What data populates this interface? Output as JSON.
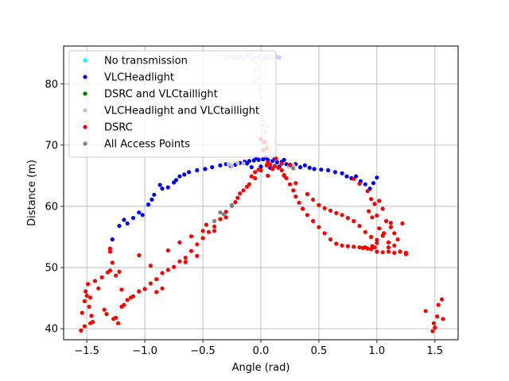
{
  "chart_data": {
    "type": "scatter",
    "xlabel": "Angle (rad)",
    "ylabel": "Distance (m)",
    "xlim": [
      -1.7,
      1.7
    ],
    "ylim": [
      38.2,
      86.2
    ],
    "x_ticks": [
      -1.5,
      -1.0,
      -0.5,
      0.0,
      0.5,
      1.0,
      1.5
    ],
    "x_tick_labels": [
      "−1.5",
      "−1.0",
      "−0.5",
      "0.0",
      "0.5",
      "1.0",
      "1.5"
    ],
    "y_ticks": [
      40,
      50,
      60,
      70,
      80
    ],
    "y_tick_labels": [
      "40",
      "50",
      "60",
      "70",
      "80"
    ],
    "grid": true,
    "legend_position": "upper-left",
    "series": [
      {
        "name": "No transmission",
        "color": "#00ffff",
        "points": []
      },
      {
        "name": "VLCHeadlight",
        "color": "#0000ff",
        "points": [
          [
            -1.28,
            54.6
          ],
          [
            -1.22,
            56.8
          ],
          [
            -1.18,
            57.8
          ],
          [
            -1.15,
            57.2
          ],
          [
            -1.1,
            58.1
          ],
          [
            -1.05,
            59.0
          ],
          [
            -1.02,
            58.6
          ],
          [
            -0.97,
            60.3
          ],
          [
            -0.94,
            61.1
          ],
          [
            -0.92,
            61.9
          ],
          [
            -0.87,
            63.5
          ],
          [
            -0.85,
            62.9
          ],
          [
            -0.8,
            63.1
          ],
          [
            -0.75,
            63.9
          ],
          [
            -0.73,
            64.3
          ],
          [
            -0.7,
            64.9
          ],
          [
            -0.66,
            65.2
          ],
          [
            -0.62,
            65.6
          ],
          [
            -0.55,
            65.9
          ],
          [
            -0.48,
            66.1
          ],
          [
            -0.42,
            66.4
          ],
          [
            -0.35,
            66.7
          ],
          [
            -0.3,
            66.9
          ],
          [
            -0.26,
            66.6
          ],
          [
            -0.22,
            66.8
          ],
          [
            -0.18,
            67.1
          ],
          [
            -0.14,
            67.3
          ],
          [
            -0.1,
            67.4
          ],
          [
            -0.06,
            67.5
          ],
          [
            -0.02,
            67.6
          ],
          [
            0.02,
            67.7
          ],
          [
            0.06,
            67.6
          ],
          [
            0.1,
            67.4
          ],
          [
            0.14,
            67.2
          ],
          [
            0.18,
            67.3
          ],
          [
            0.22,
            66.9
          ],
          [
            0.26,
            66.7
          ],
          [
            0.3,
            66.9
          ],
          [
            0.34,
            66.4
          ],
          [
            0.38,
            66.7
          ],
          [
            0.42,
            66.3
          ],
          [
            0.46,
            66.1
          ],
          [
            0.52,
            66.0
          ],
          [
            0.58,
            65.9
          ],
          [
            0.64,
            65.6
          ],
          [
            0.7,
            65.4
          ],
          [
            0.74,
            64.9
          ],
          [
            0.78,
            64.6
          ],
          [
            0.82,
            64.9
          ],
          [
            0.86,
            64.1
          ],
          [
            0.9,
            63.6
          ],
          [
            0.94,
            62.9
          ],
          [
            0.97,
            63.8
          ],
          [
            1.0,
            64.7
          ],
          [
            -0.08,
            66.4
          ],
          [
            0.0,
            66.5
          ],
          [
            0.08,
            66.3
          ],
          [
            -0.04,
            67.9
          ],
          [
            0.04,
            68.0
          ],
          [
            0.12,
            67.8
          ],
          [
            0.2,
            67.6
          ],
          [
            -0.12,
            67.0
          ],
          [
            0.16,
            66.5
          ]
        ]
      },
      {
        "name": "DSRC and VLCtaillight",
        "color": "#008000",
        "points": []
      },
      {
        "name": "VLCHeadlight and VLCtaillight",
        "color": "#c0c0c0",
        "points": [
          [
            -0.28,
            66.9
          ],
          [
            -0.25,
            66.6
          ],
          [
            -0.2,
            67.1
          ],
          [
            0.24,
            66.5
          ],
          [
            0.28,
            66.7
          ],
          [
            -0.15,
            67.0
          ],
          [
            0.02,
            73.3
          ],
          [
            0.04,
            72.2
          ],
          [
            0.01,
            74.7
          ]
        ]
      },
      {
        "name": "DSRC",
        "color": "#ff0000",
        "points": [
          [
            -1.55,
            39.7
          ],
          [
            -1.54,
            42.6
          ],
          [
            -1.52,
            44.5
          ],
          [
            -1.51,
            46.1
          ],
          [
            -1.5,
            45.4
          ],
          [
            -1.49,
            47.3
          ],
          [
            -1.48,
            43.6
          ],
          [
            -1.47,
            40.9
          ],
          [
            -1.46,
            42.1
          ],
          [
            -1.45,
            41.1
          ],
          [
            -1.43,
            47.8
          ],
          [
            -1.4,
            46.6
          ],
          [
            -1.37,
            48.4
          ],
          [
            -1.35,
            43.1
          ],
          [
            -1.33,
            42.4
          ],
          [
            -1.32,
            49.2
          ],
          [
            -1.3,
            53.1
          ],
          [
            -1.3,
            52.6
          ],
          [
            -1.28,
            50.8
          ],
          [
            -1.27,
            41.6
          ],
          [
            -1.25,
            41.8
          ],
          [
            -1.23,
            40.9
          ],
          [
            -1.2,
            43.6
          ],
          [
            -1.18,
            43.9
          ],
          [
            -1.15,
            44.7
          ],
          [
            -1.12,
            45.1
          ],
          [
            -1.1,
            45.3
          ],
          [
            -1.05,
            46.1
          ],
          [
            -1.0,
            46.5
          ],
          [
            -0.95,
            47.4
          ],
          [
            -0.9,
            48.1
          ],
          [
            -0.85,
            49.1
          ],
          [
            -0.8,
            49.6
          ],
          [
            -0.75,
            50.1
          ],
          [
            -0.7,
            51.0
          ],
          [
            -0.65,
            51.6
          ],
          [
            -0.6,
            52.7
          ],
          [
            -0.55,
            53.8
          ],
          [
            -0.5,
            54.8
          ],
          [
            -0.45,
            55.8
          ],
          [
            -0.4,
            56.7
          ],
          [
            -0.35,
            57.9
          ],
          [
            -0.3,
            59.1
          ],
          [
            -0.25,
            60.1
          ],
          [
            -0.2,
            61.4
          ],
          [
            -0.15,
            62.6
          ],
          [
            -0.1,
            63.6
          ],
          [
            -0.05,
            64.6
          ],
          [
            0.0,
            65.9
          ],
          [
            0.05,
            66.7
          ],
          [
            0.1,
            66.1
          ],
          [
            -1.3,
            49.5
          ],
          [
            -1.25,
            48.7
          ],
          [
            -1.2,
            46.4
          ],
          [
            -0.9,
            46.0
          ],
          [
            -0.85,
            46.6
          ],
          [
            -0.65,
            50.9
          ],
          [
            -0.55,
            51.9
          ],
          [
            -0.47,
            57.0
          ],
          [
            -0.4,
            56.0
          ],
          [
            -0.3,
            58.2
          ],
          [
            -0.22,
            60.7
          ],
          [
            -0.18,
            62.1
          ],
          [
            -0.12,
            63.2
          ],
          [
            -0.08,
            64.9
          ],
          [
            -1.52,
            40.4
          ],
          [
            -1.47,
            45.1
          ],
          [
            -1.22,
            49.3
          ],
          [
            -1.05,
            52.0
          ],
          [
            -0.95,
            50.3
          ],
          [
            -0.8,
            52.8
          ],
          [
            -0.7,
            54.1
          ],
          [
            -0.6,
            55.1
          ],
          [
            -0.5,
            56.0
          ],
          [
            -0.02,
            66.0
          ],
          [
            0.02,
            69.2
          ],
          [
            0.06,
            67.2
          ],
          [
            0.12,
            66.6
          ],
          [
            0.15,
            66.3
          ],
          [
            0.18,
            65.9
          ],
          [
            0.2,
            65.1
          ],
          [
            0.22,
            64.6
          ],
          [
            0.25,
            63.6
          ],
          [
            0.28,
            62.6
          ],
          [
            0.3,
            61.6
          ],
          [
            0.33,
            60.6
          ],
          [
            0.36,
            59.6
          ],
          [
            0.4,
            58.6
          ],
          [
            0.45,
            57.6
          ],
          [
            0.5,
            56.6
          ],
          [
            0.55,
            55.6
          ],
          [
            0.6,
            54.6
          ],
          [
            0.65,
            53.9
          ],
          [
            0.7,
            53.6
          ],
          [
            0.75,
            53.5
          ],
          [
            0.8,
            53.4
          ],
          [
            0.85,
            53.3
          ],
          [
            0.88,
            53.2
          ],
          [
            0.92,
            53.1
          ],
          [
            0.95,
            53.0
          ],
          [
            0.98,
            53.3
          ],
          [
            1.0,
            52.6
          ],
          [
            1.05,
            52.5
          ],
          [
            1.1,
            52.6
          ],
          [
            1.15,
            52.4
          ],
          [
            1.2,
            52.6
          ],
          [
            1.25,
            52.2
          ],
          [
            0.1,
            66.2
          ],
          [
            0.2,
            65.0
          ],
          [
            0.3,
            63.8
          ],
          [
            0.4,
            62.0
          ],
          [
            0.45,
            61.1
          ],
          [
            0.5,
            60.2
          ],
          [
            0.55,
            59.7
          ],
          [
            0.6,
            59.3
          ],
          [
            0.65,
            58.9
          ],
          [
            0.7,
            58.6
          ],
          [
            0.75,
            58.1
          ],
          [
            0.8,
            57.6
          ],
          [
            0.85,
            56.8
          ],
          [
            0.9,
            55.8
          ],
          [
            0.95,
            55.0
          ],
          [
            1.0,
            54.5
          ],
          [
            1.05,
            55.2
          ],
          [
            1.1,
            54.1
          ],
          [
            1.15,
            53.6
          ],
          [
            1.2,
            52.6
          ],
          [
            0.8,
            64.5
          ],
          [
            0.85,
            63.7
          ],
          [
            0.92,
            62.5
          ],
          [
            0.95,
            61.2
          ],
          [
            0.98,
            60.4
          ],
          [
            1.02,
            60.9
          ],
          [
            1.05,
            59.6
          ],
          [
            1.0,
            58.5
          ],
          [
            1.08,
            57.6
          ],
          [
            1.12,
            56.6
          ],
          [
            1.15,
            55.6
          ],
          [
            1.18,
            54.6
          ],
          [
            1.02,
            56.4
          ],
          [
            0.93,
            59.2
          ],
          [
            0.96,
            58.2
          ],
          [
            1.0,
            54.0
          ],
          [
            1.06,
            55.6
          ],
          [
            1.12,
            57.3
          ],
          [
            1.1,
            53.3
          ],
          [
            1.22,
            57.2
          ],
          [
            1.25,
            52.4
          ],
          [
            0.96,
            53.5
          ],
          [
            0.9,
            53.3
          ],
          [
            1.42,
            42.9
          ],
          [
            1.48,
            39.6
          ],
          [
            1.5,
            40.2
          ],
          [
            1.52,
            42.0
          ],
          [
            1.53,
            43.9
          ],
          [
            1.56,
            44.8
          ],
          [
            1.57,
            41.6
          ],
          [
            1.49,
            40.9
          ],
          [
            0.0,
            71.0
          ],
          [
            0.03,
            70.5
          ],
          [
            0.05,
            69.5
          ],
          [
            -0.05,
            65.6
          ],
          [
            0.13,
            67.8
          ],
          [
            0.25,
            66.8
          ],
          [
            0.18,
            67.0
          ],
          [
            0.08,
            66.8
          ],
          [
            0.06,
            65.0
          ]
        ]
      },
      {
        "name": "All Access Points",
        "color": "#808080",
        "points": [
          [
            -0.35,
            59.0
          ],
          [
            -0.32,
            58.7
          ],
          [
            -0.4,
            57.6
          ],
          [
            0.28,
            66.2
          ],
          [
            -0.25,
            60.2
          ]
        ]
      }
    ],
    "faded_series": [
      {
        "color": "#ccccff",
        "points": [
          [
            -0.3,
            84.2
          ],
          [
            -0.27,
            84.5
          ],
          [
            -0.24,
            84.3
          ],
          [
            -0.2,
            84.1
          ],
          [
            -0.18,
            84.6
          ],
          [
            -0.15,
            84.0
          ],
          [
            -0.12,
            84.7
          ],
          [
            -0.1,
            84.4
          ],
          [
            -0.08,
            85.0
          ],
          [
            -0.05,
            84.3
          ],
          [
            -0.02,
            84.5
          ],
          [
            0.0,
            84.8
          ],
          [
            0.03,
            84.1
          ],
          [
            0.05,
            84.6
          ],
          [
            0.08,
            84.4
          ],
          [
            0.1,
            84.2
          ],
          [
            -0.07,
            84.0
          ],
          [
            -0.03,
            82.6
          ],
          [
            -0.02,
            81.0
          ],
          [
            -0.01,
            79.4
          ],
          [
            0.0,
            77.8
          ],
          [
            0.0,
            76.4
          ],
          [
            0.01,
            75.4
          ],
          [
            0.02,
            74.0
          ],
          [
            -0.04,
            83.4
          ],
          [
            -0.05,
            82.0
          ],
          [
            -0.06,
            80.4
          ],
          [
            0.04,
            84.5
          ],
          [
            0.06,
            84.3
          ],
          [
            -0.22,
            84.7
          ],
          [
            0.12,
            84.5
          ],
          [
            0.14,
            84.4
          ],
          [
            0.16,
            84.3
          ],
          [
            -0.16,
            84.3
          ]
        ]
      },
      {
        "color": "#ffcccc",
        "points": [
          [
            0.02,
            72.3
          ],
          [
            0.03,
            71.6
          ],
          [
            0.04,
            70.8
          ],
          [
            0.05,
            70.2
          ],
          [
            0.07,
            69.6
          ],
          [
            0.08,
            69.1
          ],
          [
            0.06,
            73.0
          ]
        ]
      }
    ]
  }
}
